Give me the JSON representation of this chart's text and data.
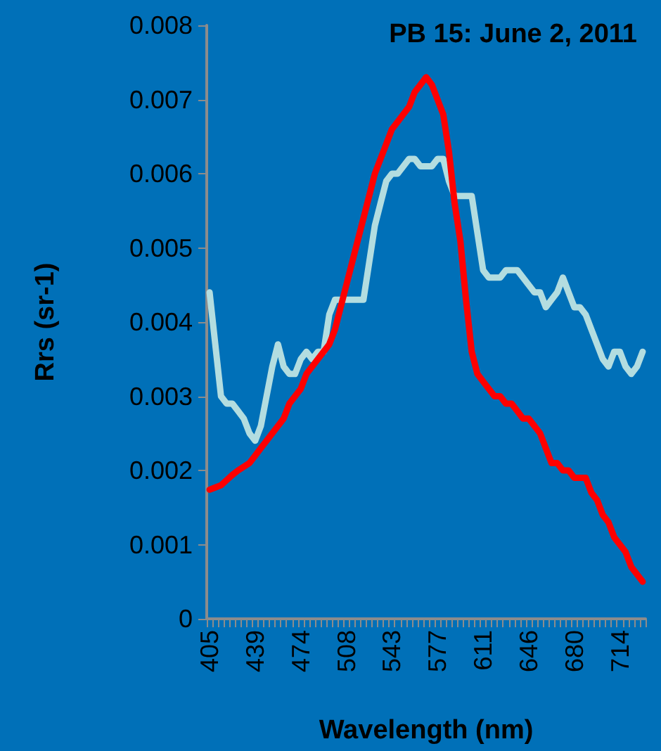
{
  "chart_data": {
    "type": "line",
    "title": "PB 15: June 2, 2011",
    "xlabel": "Wavelength (nm)",
    "ylabel": "Rrs (sr-1)",
    "categories": [
      "405",
      null,
      null,
      null,
      null,
      null,
      null,
      null,
      "439",
      null,
      null,
      null,
      null,
      null,
      null,
      null,
      "474",
      null,
      null,
      null,
      null,
      null,
      null,
      null,
      "508",
      null,
      null,
      null,
      null,
      null,
      null,
      null,
      "543",
      null,
      null,
      null,
      null,
      null,
      null,
      null,
      "577",
      null,
      null,
      null,
      null,
      null,
      null,
      null,
      "611",
      null,
      null,
      null,
      null,
      null,
      null,
      null,
      "646",
      null,
      null,
      null,
      null,
      null,
      null,
      null,
      "680",
      null,
      null,
      null,
      null,
      null,
      null,
      null,
      "714",
      null,
      null,
      null,
      null
    ],
    "series": [
      {
        "color": "#b3dde0",
        "values": [
          0.0044,
          0.0037,
          0.003,
          0.0029,
          0.0029,
          0.0028,
          0.0027,
          0.0025,
          0.0024,
          0.0026,
          0.003,
          0.0034,
          0.0037,
          0.0034,
          0.0033,
          0.0033,
          0.0035,
          0.0036,
          0.0035,
          0.0036,
          0.0036,
          0.0041,
          0.0043,
          0.0043,
          0.0043,
          0.0043,
          0.0043,
          0.0043,
          0.0048,
          0.0053,
          0.0056,
          0.0059,
          0.006,
          0.006,
          0.0061,
          0.0062,
          0.0062,
          0.0061,
          0.0061,
          0.0061,
          0.0062,
          0.0062,
          0.0059,
          0.0057,
          0.0057,
          0.0057,
          0.0057,
          0.0052,
          0.0047,
          0.0046,
          0.0046,
          0.0046,
          0.0047,
          0.0047,
          0.0047,
          0.0046,
          0.0045,
          0.0044,
          0.0044,
          0.0042,
          0.0043,
          0.0044,
          0.0046,
          0.0044,
          0.0042,
          0.0042,
          0.0041,
          0.0039,
          0.0037,
          0.0035,
          0.0034,
          0.0036,
          0.0036,
          0.0034,
          0.0033,
          0.0034,
          0.0036
        ]
      },
      {
        "color": "#ff0000",
        "values": [
          0.00174,
          0.00177,
          0.0018,
          0.00187,
          0.00194,
          0.002,
          0.00205,
          0.0021,
          0.0022,
          0.0023,
          0.0024,
          0.0025,
          0.0026,
          0.0027,
          0.0029,
          0.003,
          0.0031,
          0.0033,
          0.0034,
          0.0035,
          0.0036,
          0.0037,
          0.0039,
          0.0042,
          0.0045,
          0.0048,
          0.0051,
          0.0054,
          0.0057,
          0.006,
          0.0062,
          0.0064,
          0.0066,
          0.0067,
          0.0068,
          0.0069,
          0.0071,
          0.0072,
          0.0073,
          0.0072,
          0.007,
          0.0068,
          0.0063,
          0.0056,
          0.0051,
          0.0043,
          0.0036,
          0.0033,
          0.0032,
          0.0031,
          0.003,
          0.003,
          0.0029,
          0.0029,
          0.0028,
          0.0027,
          0.0027,
          0.0026,
          0.0025,
          0.0023,
          0.0021,
          0.0021,
          0.002,
          0.002,
          0.0019,
          0.0019,
          0.0019,
          0.0017,
          0.0016,
          0.0014,
          0.0013,
          0.0011,
          0.001,
          0.0009,
          0.0007,
          0.0006,
          0.0005
        ]
      }
    ],
    "ylim": [
      0,
      0.008
    ],
    "yticks": [
      0,
      0.001,
      0.002,
      0.003,
      0.004,
      0.005,
      0.006,
      0.007,
      0.008
    ],
    "grid": false,
    "marker": "none",
    "line_style": "solid"
  }
}
